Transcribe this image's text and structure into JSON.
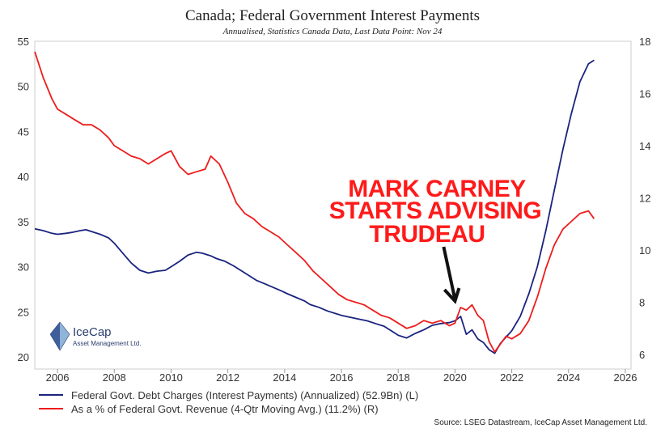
{
  "chart_data": {
    "type": "line",
    "title": "Canada; Federal Government Interest Payments",
    "subtitle": "Annualised, Statistics Canada Data, Last Data Point: Nov 24",
    "x_ticks": [
      "2006",
      "2008",
      "2010",
      "2012",
      "2014",
      "2016",
      "2018",
      "2020",
      "2022",
      "2024",
      "2026"
    ],
    "xlim": [
      2005.2,
      2026.2
    ],
    "y_left": {
      "ticks": [
        20,
        25,
        30,
        35,
        40,
        45,
        50,
        55
      ],
      "lim": [
        20,
        55
      ]
    },
    "y_right": {
      "ticks": [
        6,
        8,
        10,
        12,
        14,
        16,
        18
      ],
      "lim": [
        6,
        18
      ]
    },
    "series": [
      {
        "name": "Federal Govt. Debt Charges (Interest Payments) (Annualized) (52.9Bn) (L)",
        "axis": "left",
        "color": "#1a237e",
        "x": [
          2005.2,
          2005.5,
          2005.8,
          2006.0,
          2006.3,
          2006.5,
          2006.8,
          2007.0,
          2007.2,
          2007.5,
          2007.8,
          2008.0,
          2008.3,
          2008.6,
          2008.9,
          2009.2,
          2009.5,
          2009.8,
          2010.0,
          2010.3,
          2010.6,
          2010.9,
          2011.1,
          2011.4,
          2011.6,
          2011.9,
          2012.2,
          2012.5,
          2012.8,
          2013.0,
          2013.3,
          2013.6,
          2013.9,
          2014.1,
          2014.4,
          2014.7,
          2014.9,
          2015.2,
          2015.5,
          2015.8,
          2016.0,
          2016.3,
          2016.6,
          2016.9,
          2017.2,
          2017.5,
          2017.8,
          2018.0,
          2018.3,
          2018.6,
          2018.9,
          2019.2,
          2019.5,
          2019.8,
          2020.0,
          2020.2,
          2020.4,
          2020.6,
          2020.8,
          2021.0,
          2021.2,
          2021.4,
          2021.6,
          2021.8,
          2022.0,
          2022.3,
          2022.6,
          2022.9,
          2023.2,
          2023.5,
          2023.8,
          2024.1,
          2024.4,
          2024.7,
          2024.9
        ],
        "values": [
          34.2,
          34.0,
          33.7,
          33.6,
          33.7,
          33.8,
          34.0,
          34.1,
          33.9,
          33.6,
          33.2,
          32.6,
          31.5,
          30.4,
          29.6,
          29.3,
          29.5,
          29.6,
          30.0,
          30.6,
          31.3,
          31.6,
          31.5,
          31.2,
          30.9,
          30.6,
          30.1,
          29.5,
          28.9,
          28.5,
          28.1,
          27.7,
          27.3,
          27.0,
          26.6,
          26.2,
          25.8,
          25.5,
          25.1,
          24.8,
          24.6,
          24.4,
          24.2,
          24.0,
          23.7,
          23.4,
          22.8,
          22.4,
          22.1,
          22.6,
          23.0,
          23.5,
          23.7,
          23.8,
          24.0,
          24.5,
          22.5,
          23.0,
          22.0,
          21.6,
          20.8,
          20.4,
          21.5,
          22.2,
          22.9,
          24.5,
          27.0,
          30.0,
          34.0,
          38.5,
          43.0,
          47.0,
          50.5,
          52.5,
          52.9
        ]
      },
      {
        "name": "As a % of Federal Govt. Revenue (4-Qtr Moving Avg.) (11.2%) (R)",
        "axis": "right",
        "color": "#ee1c1c",
        "x": [
          2005.2,
          2005.5,
          2005.8,
          2006.0,
          2006.3,
          2006.6,
          2006.9,
          2007.2,
          2007.5,
          2007.8,
          2008.0,
          2008.3,
          2008.6,
          2008.9,
          2009.2,
          2009.5,
          2009.8,
          2010.0,
          2010.3,
          2010.6,
          2010.9,
          2011.2,
          2011.4,
          2011.7,
          2012.0,
          2012.3,
          2012.6,
          2012.9,
          2013.2,
          2013.5,
          2013.8,
          2014.1,
          2014.4,
          2014.7,
          2015.0,
          2015.3,
          2015.6,
          2015.9,
          2016.2,
          2016.5,
          2016.8,
          2017.1,
          2017.4,
          2017.7,
          2018.0,
          2018.3,
          2018.6,
          2018.9,
          2019.2,
          2019.5,
          2019.8,
          2020.0,
          2020.2,
          2020.4,
          2020.6,
          2020.8,
          2021.0,
          2021.2,
          2021.4,
          2021.6,
          2021.8,
          2022.0,
          2022.3,
          2022.6,
          2022.9,
          2023.2,
          2023.5,
          2023.8,
          2024.1,
          2024.4,
          2024.7,
          2024.9
        ],
        "values": [
          17.6,
          16.6,
          15.8,
          15.4,
          15.2,
          15.0,
          14.8,
          14.8,
          14.6,
          14.3,
          14.0,
          13.8,
          13.6,
          13.5,
          13.3,
          13.5,
          13.7,
          13.8,
          13.2,
          12.9,
          13.0,
          13.1,
          13.6,
          13.3,
          12.6,
          11.8,
          11.4,
          11.2,
          10.9,
          10.7,
          10.5,
          10.2,
          9.9,
          9.6,
          9.2,
          8.9,
          8.6,
          8.3,
          8.1,
          8.0,
          7.9,
          7.7,
          7.5,
          7.4,
          7.2,
          7.0,
          7.1,
          7.3,
          7.2,
          7.3,
          7.1,
          7.2,
          7.8,
          7.7,
          7.9,
          7.5,
          7.3,
          6.5,
          6.1,
          6.4,
          6.7,
          6.6,
          6.8,
          7.3,
          8.2,
          9.3,
          10.2,
          10.8,
          11.1,
          11.4,
          11.5,
          11.2
        ]
      }
    ],
    "annotation": [
      "MARK CARNEY",
      "STARTS ADVISING",
      "TRUDEAU"
    ],
    "annotation_arrow_x": 2020.0,
    "source": "Source: LSEG Datastream, IceCap Asset Management Ltd."
  },
  "logo": {
    "name": "IceCap",
    "sub": "Asset Management Ltd."
  }
}
